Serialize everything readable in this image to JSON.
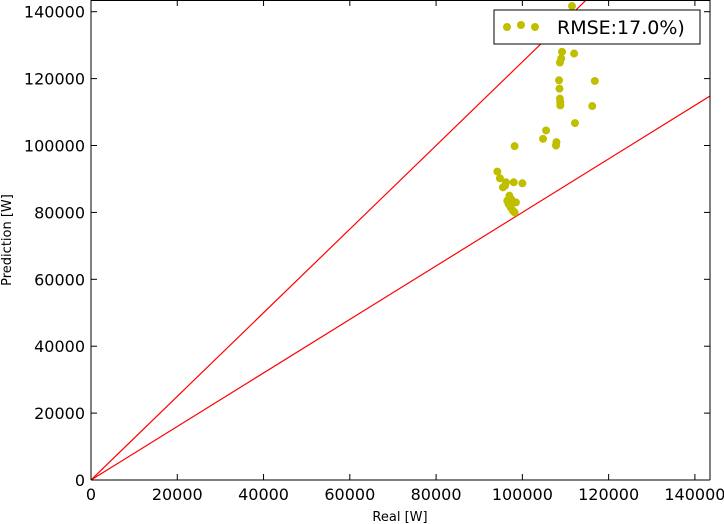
{
  "chart_data": {
    "type": "scatter",
    "title": "",
    "xlabel": "Real [W]",
    "ylabel": "Prediction [W]",
    "xlim": [
      0,
      143500
    ],
    "ylim": [
      0,
      143500
    ],
    "xticks": [
      "0",
      "20000",
      "40000",
      "60000",
      "80000",
      "100000",
      "120000",
      "140000"
    ],
    "yticks": [
      "0",
      "20000",
      "40000",
      "60000",
      "80000",
      "100000",
      "120000",
      "140000"
    ],
    "grid": false,
    "legend": {
      "placement": "top-right",
      "entries": [
        "RMSE:17.0%)"
      ]
    },
    "colors": {
      "points": "#bfbf00",
      "lines": "#ff0000",
      "axes": "#000000"
    },
    "reference_lines": [
      {
        "slope": 1.25,
        "intercept": 0
      },
      {
        "slope": 0.8,
        "intercept": 0
      }
    ],
    "series": [
      {
        "name": "RMSE:17.0%)",
        "points": [
          [
            94200,
            92200
          ],
          [
            94800,
            90200
          ],
          [
            95500,
            87500
          ],
          [
            96200,
            89000
          ],
          [
            96000,
            88000
          ],
          [
            96500,
            83500
          ],
          [
            97000,
            85000
          ],
          [
            97500,
            83800
          ],
          [
            96800,
            82500
          ],
          [
            97300,
            81500
          ],
          [
            97800,
            80500
          ],
          [
            98200,
            80000
          ],
          [
            98500,
            83000
          ],
          [
            97200,
            84000
          ],
          [
            98000,
            89000
          ],
          [
            98200,
            99800
          ],
          [
            100000,
            88700
          ],
          [
            104800,
            102000
          ],
          [
            105500,
            104500
          ],
          [
            107800,
            100000
          ],
          [
            107900,
            101000
          ],
          [
            108500,
            119500
          ],
          [
            108600,
            117000
          ],
          [
            108700,
            114000
          ],
          [
            108800,
            112000
          ],
          [
            108700,
            124800
          ],
          [
            109000,
            126000
          ],
          [
            109200,
            128000
          ],
          [
            108800,
            113000
          ],
          [
            111500,
            141700
          ],
          [
            112000,
            127500
          ],
          [
            112200,
            106700
          ],
          [
            116200,
            111800
          ],
          [
            116800,
            119300
          ]
        ]
      }
    ]
  }
}
